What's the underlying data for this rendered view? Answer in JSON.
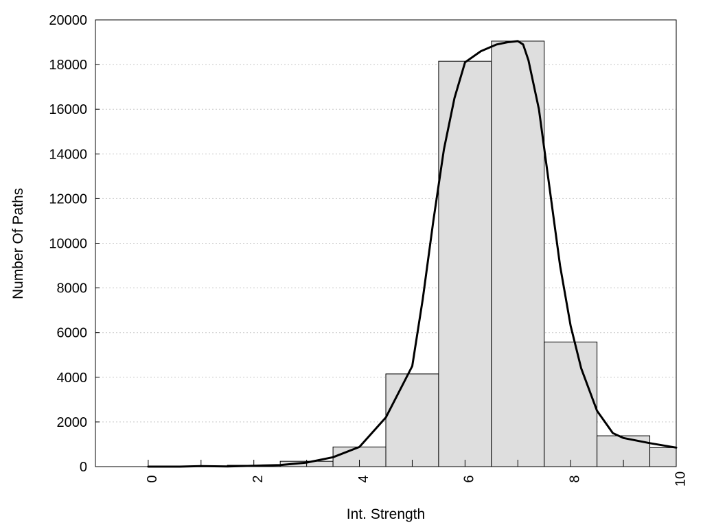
{
  "chart_data": {
    "type": "bar",
    "title": "",
    "xlabel": "Int. Strength",
    "ylabel": "Number Of Paths",
    "xlim": [
      -1,
      10
    ],
    "ylim": [
      0,
      20000
    ],
    "x_ticks": [
      0,
      2,
      4,
      6,
      8,
      10
    ],
    "y_ticks": [
      0,
      2000,
      4000,
      6000,
      8000,
      10000,
      12000,
      14000,
      16000,
      18000,
      20000
    ],
    "grid": "horizontal dotted",
    "bar_color": "#dedede",
    "bar_edge_color": "#000000",
    "bars": [
      {
        "x": 0,
        "value": 0
      },
      {
        "x": 1,
        "value": 25
      },
      {
        "x": 2,
        "value": 60
      },
      {
        "x": 3,
        "value": 240
      },
      {
        "x": 4,
        "value": 880
      },
      {
        "x": 5,
        "value": 4150
      },
      {
        "x": 6,
        "value": 18150
      },
      {
        "x": 7,
        "value": 19050
      },
      {
        "x": 8,
        "value": 5580
      },
      {
        "x": 9,
        "value": 1380
      },
      {
        "x": 10,
        "value": 850
      }
    ],
    "curve": {
      "color": "#000000",
      "points": [
        [
          0,
          0
        ],
        [
          0.6,
          0
        ],
        [
          1,
          20
        ],
        [
          1.5,
          10
        ],
        [
          2,
          40
        ],
        [
          2.5,
          70
        ],
        [
          3,
          180
        ],
        [
          3.5,
          420
        ],
        [
          4,
          880
        ],
        [
          4.5,
          2200
        ],
        [
          5,
          4500
        ],
        [
          5.2,
          7500
        ],
        [
          5.4,
          11000
        ],
        [
          5.6,
          14200
        ],
        [
          5.8,
          16500
        ],
        [
          6,
          18100
        ],
        [
          6.3,
          18600
        ],
        [
          6.6,
          18900
        ],
        [
          6.8,
          19000
        ],
        [
          7,
          19050
        ],
        [
          7.1,
          18900
        ],
        [
          7.2,
          18200
        ],
        [
          7.4,
          16000
        ],
        [
          7.6,
          12500
        ],
        [
          7.8,
          9000
        ],
        [
          8,
          6300
        ],
        [
          8.2,
          4400
        ],
        [
          8.5,
          2500
        ],
        [
          8.8,
          1500
        ],
        [
          9,
          1280
        ],
        [
          9.5,
          1050
        ],
        [
          10,
          850
        ]
      ]
    }
  }
}
